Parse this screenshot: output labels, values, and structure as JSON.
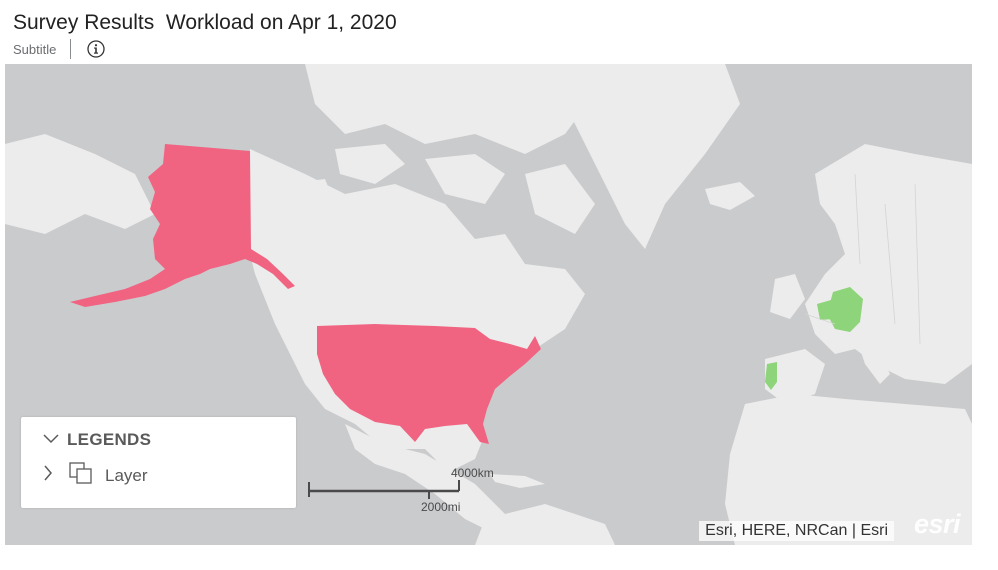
{
  "header": {
    "title": "Survey Results  Workload on Apr 1, 2020",
    "subtitle": "Subtitle",
    "info_icon": "info-icon"
  },
  "colors": {
    "ocean": "#cacbcd",
    "land": "#ececec",
    "highlight_primary": "#f06482",
    "highlight_secondary": "#8ed47a"
  },
  "map": {
    "highlighted_regions": [
      {
        "name": "Alaska",
        "color": "#f06482"
      },
      {
        "name": "United States",
        "color": "#f06482"
      },
      {
        "name": "Germany",
        "color": "#8ed47a"
      },
      {
        "name": "Belgium",
        "color": "#8ed47a"
      },
      {
        "name": "Portugal",
        "color": "#8ed47a"
      }
    ],
    "legend": {
      "title": "LEGENDS",
      "layer_label": "Layer",
      "expand_icon": "chevron-down-icon",
      "layer_toggle_icon": "chevron-right-icon",
      "layer_icon": "layers-icon"
    },
    "scale": {
      "km_label": "4000km",
      "mi_label": "2000mi"
    },
    "attribution": "Esri, HERE, NRCan | Esri",
    "logo": "esri"
  }
}
